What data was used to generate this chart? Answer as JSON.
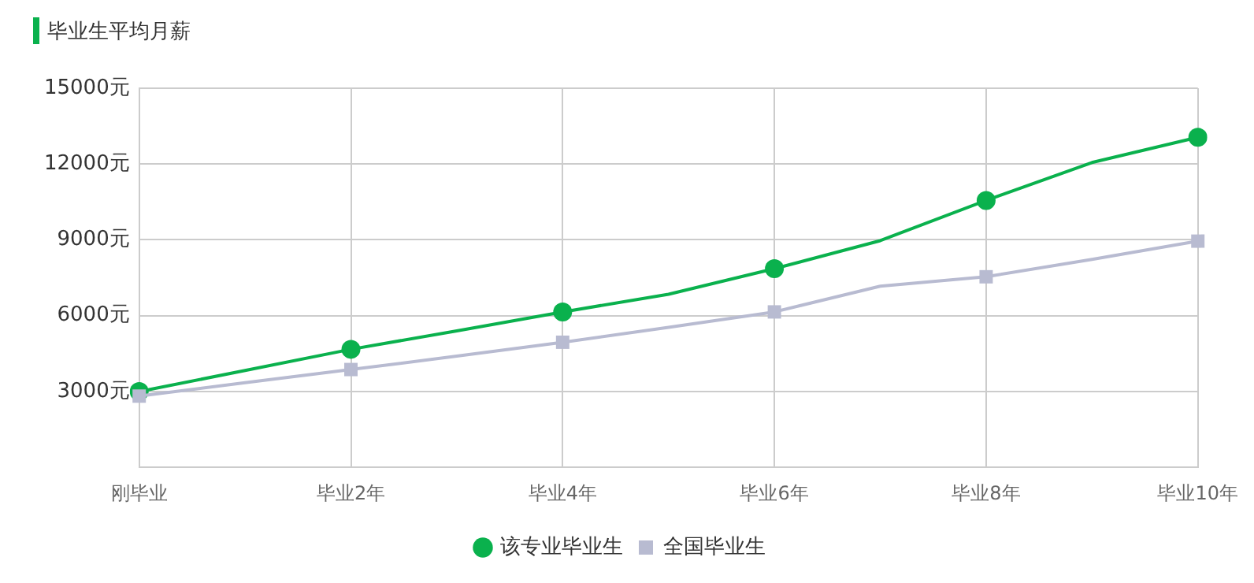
{
  "chart_data": {
    "type": "line",
    "title": "毕业生平均月薪",
    "categories": [
      "刚毕业",
      null,
      "毕业2年",
      null,
      "毕业4年",
      null,
      "毕业6年",
      null,
      "毕业8年",
      null,
      "毕业10年"
    ],
    "series": [
      {
        "name": "该专业毕业生",
        "color": "#0ab14d",
        "marker": "circle",
        "values": [
          3000,
          3830,
          4670,
          5400,
          6150,
          6850,
          7860,
          8970,
          10560,
          12060,
          13060
        ]
      },
      {
        "name": "全国毕业生",
        "color": "#b8bbd1",
        "marker": "square",
        "values": [
          2820,
          3350,
          3870,
          4400,
          4950,
          5540,
          6150,
          7170,
          7540,
          8230,
          8950
        ]
      }
    ],
    "ylim": [
      0,
      15000
    ],
    "yticks": [
      {
        "value": 3000,
        "label": "3000元"
      },
      {
        "value": 6000,
        "label": "6000元"
      },
      {
        "value": 9000,
        "label": "9000元"
      },
      {
        "value": 12000,
        "label": "12000元"
      },
      {
        "value": 15000,
        "label": "15000元"
      }
    ],
    "grid": true,
    "legend": "bottom",
    "line_style": "solid"
  }
}
